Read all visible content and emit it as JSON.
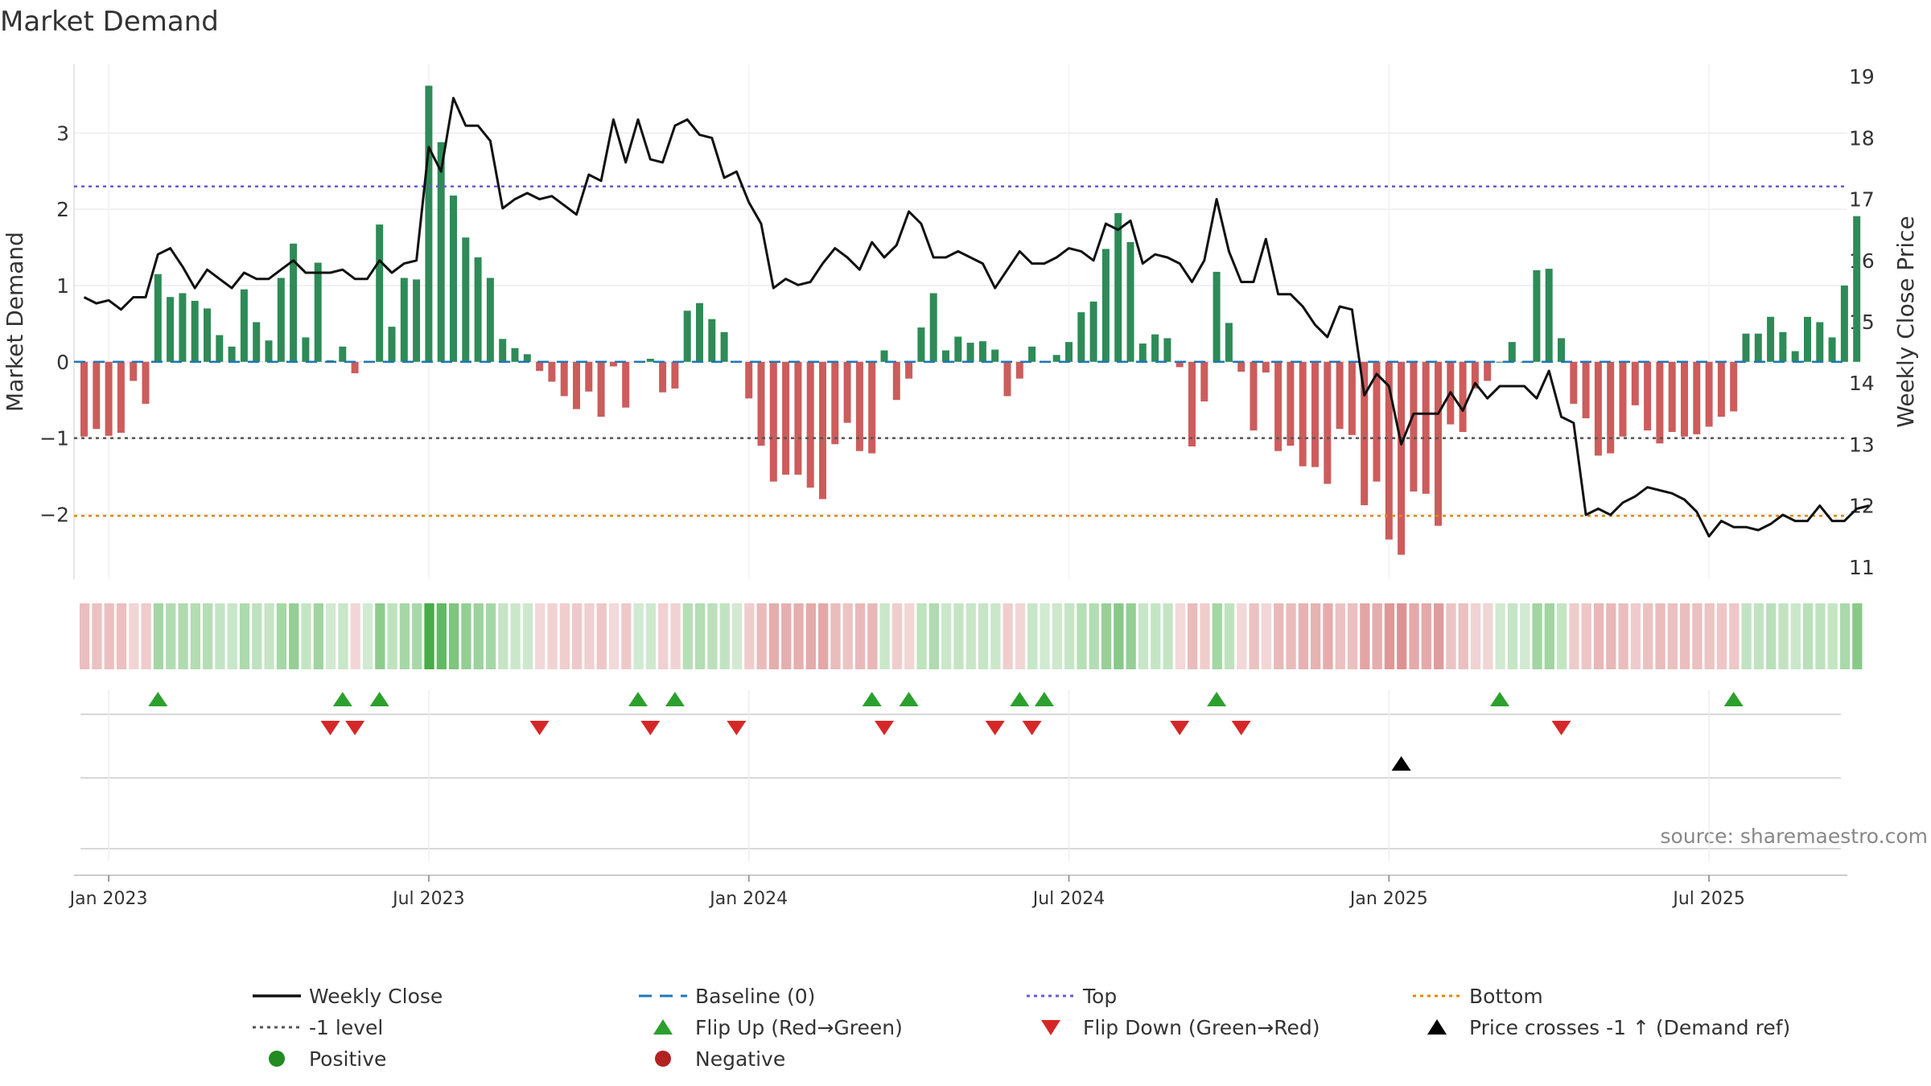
{
  "chart_data": {
    "type": "bar",
    "title": "Market Demand",
    "ylabel_left": "Market Demand",
    "ylabel_right": "Weekly Close Price",
    "source": "source: sharemaestro.com",
    "x_ticks": [
      "Jan 2023",
      "Jul 2023",
      "Jan 2024",
      "Jul 2024",
      "Jan 2025",
      "Jul 2025"
    ],
    "x_tick_weeks": [
      2,
      28,
      54,
      80,
      106,
      132
    ],
    "y_left_ticks": [
      3,
      2,
      1,
      0,
      -1,
      -2
    ],
    "y_left_tick_labels": [
      "3",
      "2",
      "1",
      "0",
      "−1",
      "−2"
    ],
    "y_left_range": [
      -2.85,
      3.9
    ],
    "y_right_ticks": [
      19,
      18,
      17,
      16,
      15,
      14,
      13,
      12,
      11
    ],
    "y_right_range": [
      10.8,
      19.2
    ],
    "levels": {
      "top": 2.3,
      "minus_one": -1.0,
      "bottom": -2.02,
      "baseline": 0
    },
    "demand": [
      -0.98,
      -0.88,
      -0.97,
      -0.93,
      -0.25,
      -0.55,
      1.15,
      0.85,
      0.9,
      0.8,
      0.7,
      0.35,
      0.2,
      0.95,
      0.52,
      0.28,
      1.1,
      1.55,
      0.32,
      1.3,
      0.02,
      0.2,
      -0.15,
      0.0,
      1.8,
      0.46,
      1.1,
      1.08,
      3.62,
      2.88,
      2.18,
      1.63,
      1.37,
      1.1,
      0.3,
      0.18,
      0.1,
      -0.12,
      -0.26,
      -0.45,
      -0.62,
      -0.39,
      -0.72,
      -0.06,
      -0.6,
      0.0,
      0.04,
      -0.4,
      -0.35,
      0.67,
      0.77,
      0.56,
      0.39,
      0.0,
      -0.48,
      -1.1,
      -1.57,
      -1.48,
      -1.48,
      -1.65,
      -1.8,
      -1.08,
      -0.8,
      -1.17,
      -1.2,
      0.15,
      -0.5,
      -0.22,
      0.45,
      0.9,
      0.15,
      0.33,
      0.25,
      0.27,
      0.16,
      -0.45,
      -0.22,
      0.2,
      0.0,
      0.09,
      0.26,
      0.65,
      0.79,
      1.48,
      1.95,
      1.57,
      0.24,
      0.36,
      0.31,
      -0.07,
      -1.11,
      -0.52,
      1.18,
      0.51,
      -0.13,
      -0.9,
      -0.14,
      -1.17,
      -1.1,
      -1.37,
      -1.38,
      -1.6,
      -0.88,
      -0.96,
      -1.88,
      -1.57,
      -2.33,
      -2.53,
      -1.7,
      -1.73,
      -2.15,
      -0.82,
      -0.92,
      -0.35,
      -0.25,
      0.0,
      0.26,
      0.0,
      1.2,
      1.22,
      0.31,
      -0.55,
      -0.74,
      -1.23,
      -1.2,
      -0.98,
      -0.57,
      -0.9,
      -1.07,
      -0.92,
      -0.98,
      -0.95,
      -0.85,
      -0.72,
      -0.65,
      0.37,
      0.37,
      0.59,
      0.39,
      0.14,
      0.59,
      0.52,
      0.32,
      1.0,
      1.91
    ],
    "close": [
      15.4,
      15.3,
      15.35,
      15.2,
      15.4,
      15.4,
      16.1,
      16.2,
      15.9,
      15.55,
      15.85,
      15.7,
      15.55,
      15.8,
      15.7,
      15.7,
      15.85,
      16.0,
      15.8,
      15.8,
      15.8,
      15.85,
      15.7,
      15.7,
      16.0,
      15.8,
      15.95,
      16.0,
      17.85,
      17.45,
      18.65,
      18.2,
      18.2,
      17.95,
      16.85,
      17.0,
      17.1,
      17.0,
      17.05,
      16.9,
      16.75,
      17.4,
      17.3,
      18.3,
      17.6,
      18.3,
      17.65,
      17.6,
      18.2,
      18.3,
      18.05,
      18.0,
      17.35,
      17.45,
      16.95,
      16.6,
      15.55,
      15.7,
      15.6,
      15.65,
      15.95,
      16.2,
      16.05,
      15.85,
      16.3,
      16.05,
      16.25,
      16.8,
      16.6,
      16.05,
      16.05,
      16.15,
      16.05,
      15.95,
      15.55,
      15.85,
      16.15,
      15.95,
      15.95,
      16.05,
      16.2,
      16.15,
      16.0,
      16.6,
      16.5,
      16.65,
      15.95,
      16.1,
      16.05,
      15.95,
      15.65,
      16.0,
      17.0,
      16.15,
      15.65,
      15.65,
      16.35,
      15.45,
      15.45,
      15.25,
      14.95,
      14.75,
      15.25,
      15.2,
      13.8,
      14.15,
      13.95,
      13.0,
      13.5,
      13.5,
      13.5,
      13.85,
      13.55,
      14.0,
      13.75,
      13.95,
      13.95,
      13.95,
      13.75,
      14.2,
      13.45,
      13.35,
      11.85,
      11.95,
      11.85,
      12.05,
      12.15,
      12.3,
      12.25,
      12.2,
      12.1,
      11.9,
      11.5,
      11.75,
      11.65,
      11.65,
      11.6,
      11.7,
      11.85,
      11.75,
      11.75,
      12.0,
      11.75,
      11.75,
      11.95,
      12.0
    ],
    "flip_up_weeks": [
      6,
      21,
      24,
      45,
      48,
      64,
      67,
      76,
      78,
      92,
      115,
      134
    ],
    "flip_down_weeks": [
      20,
      22,
      37,
      46,
      53,
      65,
      74,
      77,
      89,
      94,
      120
    ],
    "price_cross_weeks": [
      107
    ],
    "colors": {
      "positive": "#2e8b57",
      "negative": "#cd5c5c",
      "close": "#111111",
      "baseline": "#1f77b4",
      "top": "#6a5acd",
      "minus_one": "#555555",
      "bottom": "#e08a00",
      "flip_up": "#2ca02c",
      "flip_down": "#d62728",
      "cross": "#000000"
    },
    "legend": [
      {
        "label": "Weekly Close",
        "marker": "line"
      },
      {
        "label": "Baseline (0)",
        "marker": "dash"
      },
      {
        "label": "Top",
        "marker": "dot-line"
      },
      {
        "label": "Bottom",
        "marker": "dot-line"
      },
      {
        "label": "-1 level",
        "marker": "dot-line"
      },
      {
        "label": "Flip Up (Red→Green)",
        "marker": "triangle-up"
      },
      {
        "label": "Flip Down (Green→Red)",
        "marker": "triangle-down"
      },
      {
        "label": "Price crosses -1 ↑ (Demand ref)",
        "marker": "triangle-up"
      },
      {
        "label": "Positive",
        "marker": "circle"
      },
      {
        "label": "Negative",
        "marker": "circle"
      }
    ],
    "legend_colors": [
      "#111111",
      "#1f77b4",
      "#6a5acd",
      "#e08a00",
      "#555555",
      "#2ca02c",
      "#d62728",
      "#000000",
      "#228b22",
      "#b22222"
    ]
  }
}
